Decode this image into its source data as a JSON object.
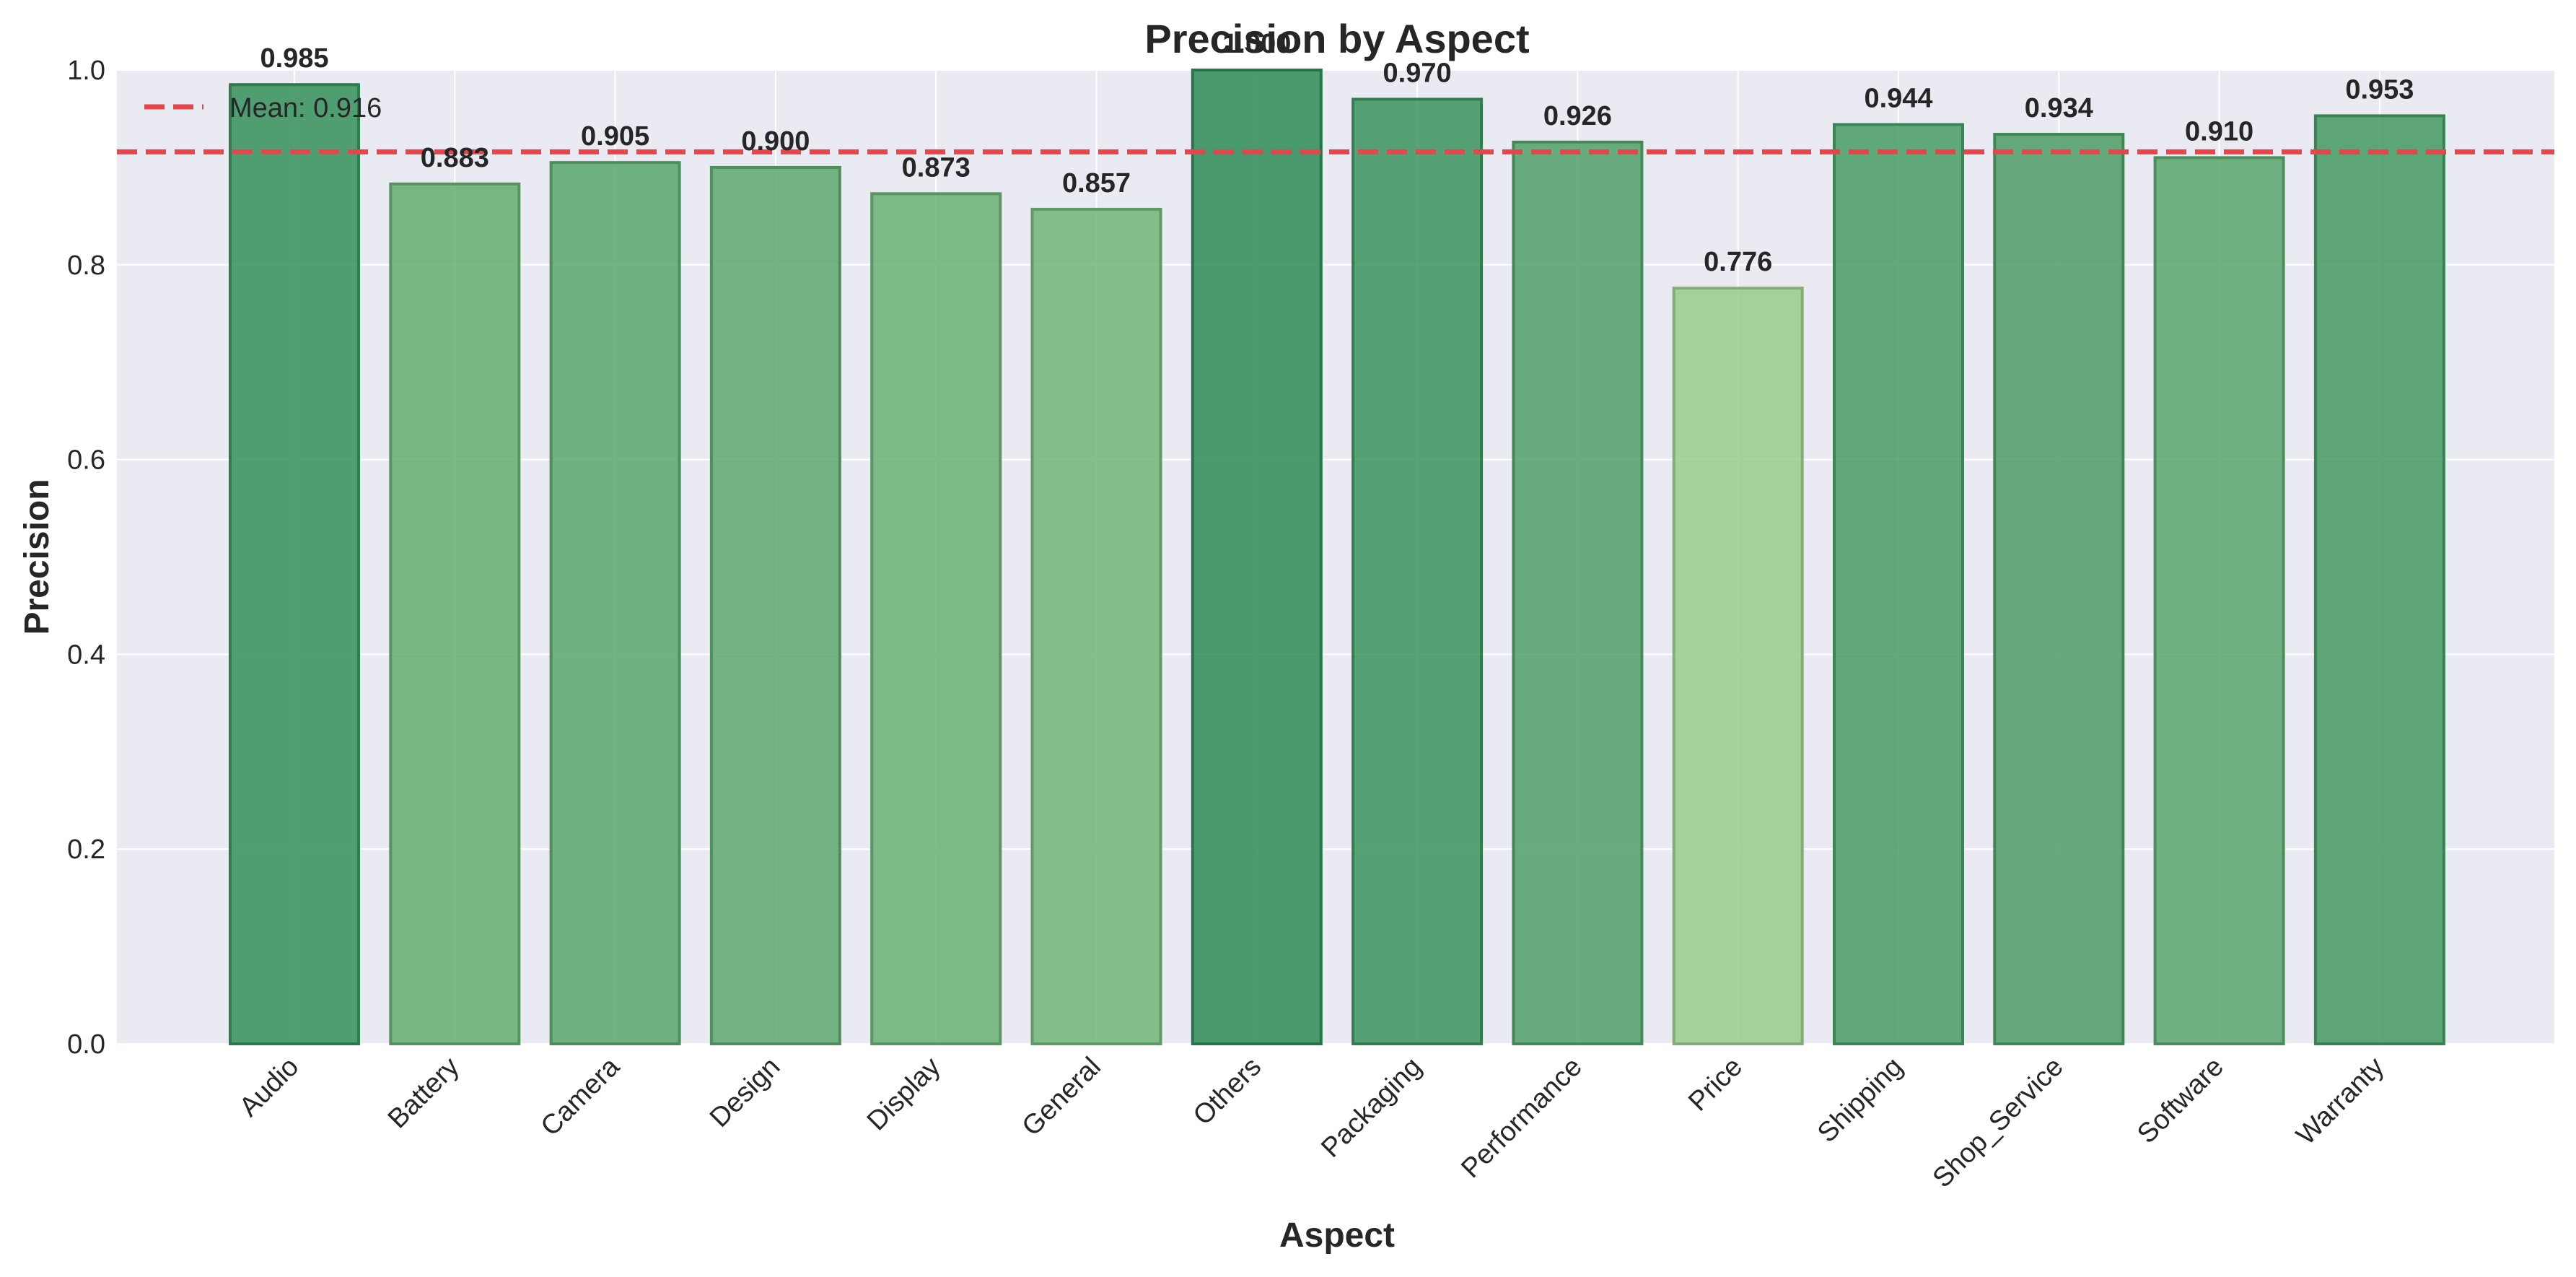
{
  "chart_data": {
    "type": "bar",
    "title": "Precision by Aspect",
    "xlabel": "Aspect",
    "ylabel": "Precision",
    "ylim": [
      0,
      1.0
    ],
    "yticks": [
      0.0,
      0.2,
      0.4,
      0.6,
      0.8,
      1.0
    ],
    "ytick_labels": [
      "0.0",
      "0.2",
      "0.4",
      "0.6",
      "0.8",
      "1.0"
    ],
    "categories": [
      "Audio",
      "Battery",
      "Camera",
      "Design",
      "Display",
      "General",
      "Others",
      "Packaging",
      "Performance",
      "Price",
      "Shipping",
      "Shop_Service",
      "Software",
      "Warranty"
    ],
    "values": [
      0.985,
      0.883,
      0.905,
      0.9,
      0.873,
      0.857,
      1.0,
      0.97,
      0.926,
      0.776,
      0.944,
      0.934,
      0.91,
      0.953
    ],
    "value_labels": [
      "0.985",
      "0.883",
      "0.905",
      "0.900",
      "0.873",
      "0.857",
      "1.000",
      "0.970",
      "0.926",
      "0.776",
      "0.944",
      "0.934",
      "0.910",
      "0.953"
    ],
    "mean_line": {
      "value": 0.916,
      "label": "Mean: 0.916",
      "color": "#e8454a",
      "style": "dashed"
    },
    "legend": {
      "placement": "top-left",
      "entries": [
        "Mean: 0.916"
      ]
    },
    "grid": true,
    "colors": {
      "plot_background": "#eaeaf2",
      "grid": "#ffffff",
      "bar_low": "#97cd89",
      "bar_high": "#2e8b57"
    }
  }
}
